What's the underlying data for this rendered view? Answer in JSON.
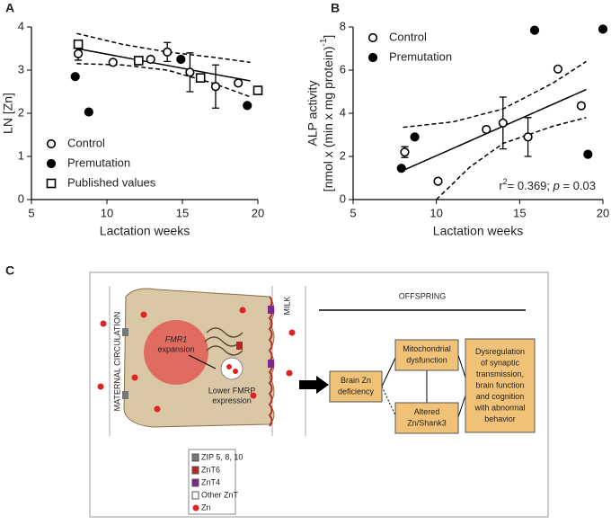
{
  "chart_data": [
    {
      "type": "scatter",
      "panel_label": "A",
      "x_label": "Lactation weeks",
      "y_label": "LN [Zn]",
      "xlim": [
        5,
        20
      ],
      "xticks": [
        5,
        10,
        15,
        20
      ],
      "ylim": [
        0,
        4
      ],
      "yticks": [
        0,
        1,
        2,
        3,
        4
      ],
      "legend": "lower left",
      "series": [
        {
          "name": "Control",
          "marker": "circle-open",
          "color": "#000000",
          "x": [
            8.1,
            10.4,
            12.9,
            14.0,
            15.5,
            17.2,
            18.7
          ],
          "values": [
            3.38,
            3.18,
            3.25,
            3.42,
            2.95,
            2.62,
            2.7
          ],
          "errors": [
            0.15,
            null,
            null,
            0.22,
            0.45,
            0.5,
            null
          ]
        },
        {
          "name": "Premutation",
          "marker": "circle-filled",
          "color": "#000000",
          "x": [
            7.9,
            8.8,
            14.9,
            19.3
          ],
          "values": [
            2.85,
            2.03,
            3.25,
            2.18
          ]
        },
        {
          "name": "Published values",
          "marker": "square-open",
          "color": "#000000",
          "x": [
            8.1,
            12.1,
            16.2,
            20.0
          ],
          "values": [
            3.6,
            3.22,
            2.82,
            2.53
          ]
        }
      ],
      "fit": {
        "x": [
          8,
          19.5
        ],
        "y": [
          3.5,
          2.75
        ]
      },
      "ci_upper": {
        "x": [
          8,
          11,
          14,
          17,
          19.5
        ],
        "y": [
          3.85,
          3.6,
          3.42,
          3.3,
          3.18
        ]
      },
      "ci_lower": {
        "x": [
          8,
          11,
          14,
          17,
          19.5
        ],
        "y": [
          3.15,
          3.12,
          3.0,
          2.7,
          2.38
        ]
      }
    },
    {
      "type": "scatter",
      "panel_label": "B",
      "x_label": "Lactation weeks",
      "y_label": [
        "ALP activity",
        "[nmol x (min x mg protein)",
        "-1",
        "]"
      ],
      "xlim": [
        5,
        20
      ],
      "xticks": [
        5,
        10,
        15,
        20
      ],
      "ylim": [
        0,
        8
      ],
      "yticks": [
        0,
        2,
        4,
        6,
        8
      ],
      "legend": "upper left",
      "annotation": [
        "r",
        "2",
        "= 0.369; ",
        "p",
        " = 0.03"
      ],
      "series": [
        {
          "name": "Control",
          "marker": "circle-open",
          "color": "#000000",
          "x": [
            8.1,
            10.1,
            13.0,
            14.0,
            15.5,
            17.3,
            18.7
          ],
          "values": [
            2.2,
            0.85,
            3.25,
            3.55,
            2.9,
            6.05,
            4.35
          ],
          "errors": [
            0.25,
            null,
            null,
            1.2,
            0.9,
            null,
            null
          ]
        },
        {
          "name": "Premutation",
          "marker": "circle-filled",
          "color": "#000000",
          "x": [
            7.9,
            8.7,
            15.9,
            19.1,
            20.0
          ],
          "values": [
            1.45,
            2.9,
            7.85,
            2.1,
            7.9
          ]
        }
      ],
      "fit": {
        "x": [
          8,
          19
        ],
        "y": [
          1.35,
          5.1
        ]
      },
      "ci_upper": {
        "x": [
          8,
          11,
          14,
          17,
          19
        ],
        "y": [
          3.35,
          3.6,
          4.2,
          5.4,
          6.4
        ]
      },
      "ci_lower": {
        "x": [
          10,
          12,
          14,
          17,
          19
        ],
        "y": [
          0.0,
          1.5,
          2.6,
          3.4,
          3.8
        ]
      }
    }
  ],
  "diagram": {
    "panel_label": "C",
    "offspring": "OFFSPRING",
    "milk": "MILK",
    "maternal": "MATERNAL CIRCULATION",
    "fmr1": "FMR1",
    "expansion": "expansion",
    "fmrp": [
      "Lower FMRP",
      "expression"
    ],
    "boxes": [
      {
        "lines": [
          "Brain Zn",
          "deficiency"
        ]
      },
      {
        "lines": [
          "Mitochondrial",
          "dysfunction"
        ]
      },
      {
        "lines": [
          "Altered",
          "Zn/Shank3"
        ]
      },
      {
        "lines": [
          "Dysregulation",
          "of synaptic",
          "transmission,",
          "brain function",
          "and cognition",
          "with abnormal",
          "behavior"
        ]
      }
    ],
    "legend": [
      "ZIP 5, 8, 10",
      "ZnT6",
      "ZnT4",
      "Other ZnT",
      "Zn"
    ]
  }
}
